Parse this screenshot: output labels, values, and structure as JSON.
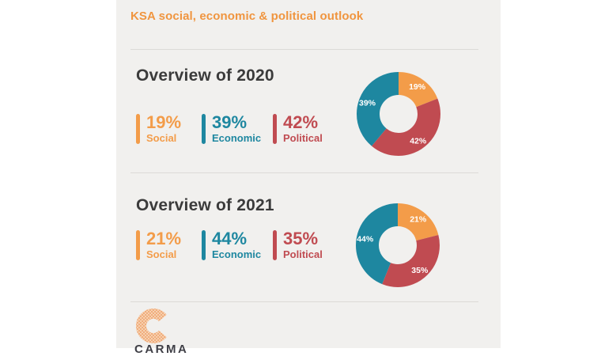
{
  "header": {
    "title": "KSA social, economic & political outlook"
  },
  "theme": {
    "accent_orange": "#f39c49",
    "accent_teal": "#1e87a0",
    "accent_red": "#c04b51",
    "heading_color": "#3b3b3b",
    "card_background": "#f1f0ee",
    "divider_color": "#dcdad7",
    "logo_peach": "#f2b488"
  },
  "sections": [
    {
      "title": "Overview of 2020",
      "stats": [
        {
          "value": "19%",
          "label": "Social",
          "color": "#f39c49"
        },
        {
          "value": "39%",
          "label": "Economic",
          "color": "#1e87a0"
        },
        {
          "value": "42%",
          "label": "Political",
          "color": "#c04b51"
        }
      ]
    },
    {
      "title": "Overview of 2021",
      "stats": [
        {
          "value": "21%",
          "label": "Social",
          "color": "#f39c49"
        },
        {
          "value": "44%",
          "label": "Economic",
          "color": "#1e87a0"
        },
        {
          "value": "35%",
          "label": "Political",
          "color": "#c04b51"
        }
      ]
    }
  ],
  "chart_data": [
    {
      "type": "pie",
      "subtype": "donut",
      "title": "Overview of 2020",
      "legend_position": "none",
      "inner_radius_ratio": 0.45,
      "start_angle_deg": 0,
      "direction": "clockwise",
      "segments": [
        {
          "label": "Social",
          "value": 19,
          "display": "19%",
          "color": "#f39c49"
        },
        {
          "label": "Political",
          "value": 42,
          "display": "42%",
          "color": "#c04b51"
        },
        {
          "label": "Economic",
          "value": 39,
          "display": "39%",
          "color": "#1e87a0"
        }
      ]
    },
    {
      "type": "pie",
      "subtype": "donut",
      "title": "Overview of 2021",
      "legend_position": "none",
      "inner_radius_ratio": 0.45,
      "start_angle_deg": 0,
      "direction": "clockwise",
      "segments": [
        {
          "label": "Social",
          "value": 21,
          "display": "21%",
          "color": "#f39c49"
        },
        {
          "label": "Political",
          "value": 35,
          "display": "35%",
          "color": "#c04b51"
        },
        {
          "label": "Economic",
          "value": 44,
          "display": "44%",
          "color": "#1e87a0"
        }
      ]
    }
  ],
  "footer": {
    "brand": "CARMA"
  }
}
